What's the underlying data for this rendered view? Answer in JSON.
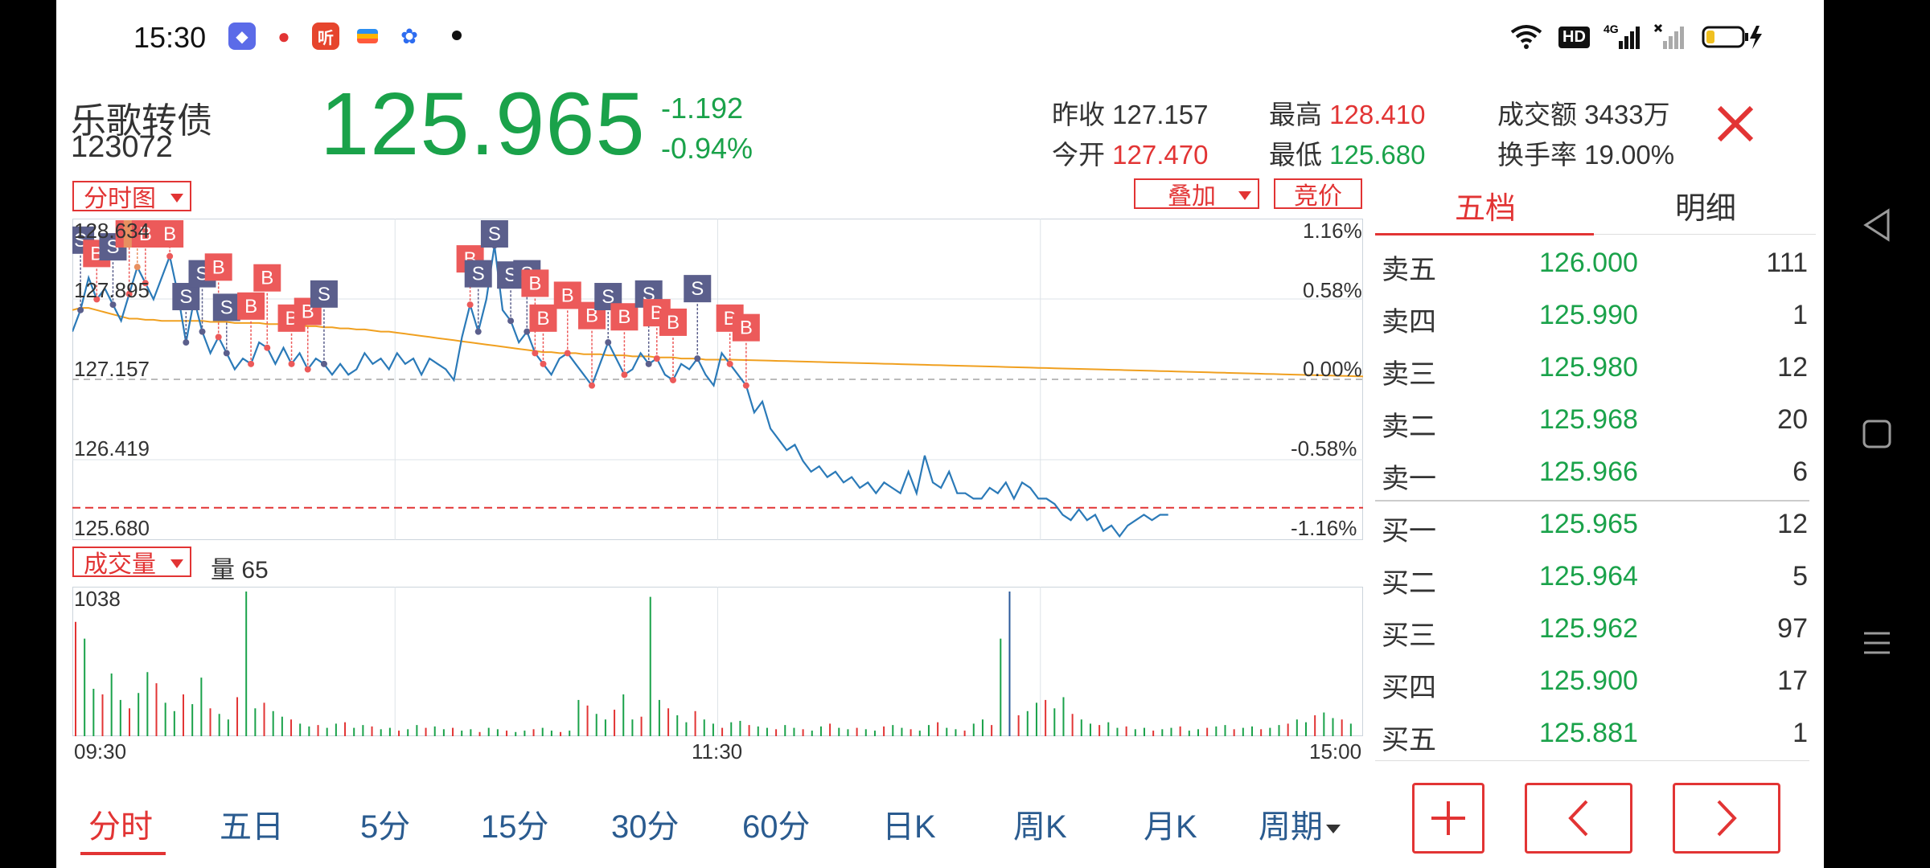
{
  "status_bar": {
    "time": "15:30",
    "apps": [
      {
        "icon": "shortcut-app-icon",
        "label": "◆",
        "color": "#5b6be8"
      },
      {
        "icon": "map-pin-app-icon",
        "label": "●",
        "color": "#ffffff"
      },
      {
        "icon": "listen-app-icon",
        "label": "听",
        "color": "#e6452d"
      },
      {
        "icon": "wallet-app-icon",
        "label": "▬",
        "color": "#ffffff"
      },
      {
        "icon": "baidu-app-icon",
        "label": "✿",
        "color": "#ffffff"
      }
    ],
    "hd_label": "HD",
    "net_label": "4G"
  },
  "header": {
    "name": "乐歌转债",
    "code": "123072",
    "price": "125.965",
    "change": "-1.192",
    "change_pct": "-0.94%",
    "stats": {
      "prev_close_label": "昨收",
      "prev_close": "127.157",
      "open_label": "今开",
      "open": "127.470",
      "high_label": "最高",
      "high": "128.410",
      "low_label": "最低",
      "low": "125.680",
      "amount_label": "成交额",
      "amount": "3433万",
      "turnover_label": "换手率",
      "turnover": "19.00%"
    }
  },
  "controls": {
    "chart_mode": "分时图",
    "overlay": "叠加",
    "auction": "竞价",
    "volume_mode": "成交量",
    "volume_label": "量 65"
  },
  "chart_data": {
    "type": "line",
    "title": "",
    "xlabel": "",
    "ylabel": "",
    "x_ticks": [
      "09:30",
      "11:30",
      "15:00"
    ],
    "y_ticks_left": [
      "128.634",
      "127.895",
      "127.157",
      "126.419",
      "125.680"
    ],
    "y_ticks_right": [
      "1.16%",
      "0.58%",
      "0.00%",
      "-0.58%",
      "-1.16%"
    ],
    "ylim": [
      125.68,
      128.634
    ],
    "prev_close": 127.157,
    "reference_line": 125.965,
    "series": [
      {
        "name": "price",
        "color": "#2b7ab8",
        "values": [
          127.6,
          127.8,
          128.1,
          127.9,
          128.0,
          127.85,
          127.7,
          127.95,
          128.2,
          128.05,
          127.9,
          128.1,
          128.3,
          127.95,
          127.5,
          127.9,
          127.6,
          127.4,
          127.55,
          127.4,
          127.25,
          127.35,
          127.3,
          127.5,
          127.45,
          127.3,
          127.45,
          127.3,
          127.4,
          127.25,
          127.35,
          127.3,
          127.2,
          127.3,
          127.2,
          127.25,
          127.4,
          127.3,
          127.35,
          127.25,
          127.4,
          127.3,
          127.35,
          127.2,
          127.35,
          127.3,
          127.25,
          127.15,
          127.55,
          127.85,
          127.6,
          127.9,
          128.4,
          127.8,
          127.7,
          127.5,
          127.6,
          127.4,
          127.3,
          127.2,
          127.35,
          127.4,
          127.3,
          127.2,
          127.1,
          127.3,
          127.5,
          127.35,
          127.2,
          127.25,
          127.4,
          127.3,
          127.35,
          127.2,
          127.15,
          127.3,
          127.25,
          127.35,
          127.2,
          127.1,
          127.4,
          127.3,
          127.2,
          127.1,
          126.85,
          126.95,
          126.7,
          126.6,
          126.5,
          126.55,
          126.4,
          126.3,
          126.35,
          126.25,
          126.3,
          126.2,
          126.25,
          126.15,
          126.2,
          126.1,
          126.2,
          126.15,
          126.1,
          126.3,
          126.1,
          126.45,
          126.2,
          126.15,
          126.3,
          126.1,
          126.1,
          126.05,
          126.05,
          126.15,
          126.1,
          126.2,
          126.05,
          126.2,
          126.15,
          126.05,
          126.05,
          126.0,
          125.9,
          125.85,
          125.95,
          125.85,
          125.9,
          125.75,
          125.8,
          125.7,
          125.8,
          125.85,
          125.9,
          125.85,
          125.9,
          125.9
        ]
      },
      {
        "name": "average",
        "color": "#f0a020",
        "values": [
          127.8,
          127.82,
          127.82,
          127.8,
          127.78,
          127.76,
          127.74,
          127.72,
          127.72,
          127.71,
          127.71,
          127.7,
          127.7,
          127.7,
          127.7,
          127.7,
          127.7,
          127.69,
          127.69,
          127.69,
          127.68,
          127.68,
          127.68,
          127.68,
          127.67,
          127.67,
          127.67,
          127.66,
          127.66,
          127.65,
          127.65,
          127.64,
          127.64,
          127.63,
          127.63,
          127.62,
          127.62,
          127.61,
          127.6,
          127.6,
          127.59,
          127.58,
          127.57,
          127.56,
          127.55,
          127.54,
          127.53,
          127.52,
          127.51,
          127.5,
          127.49,
          127.48,
          127.47,
          127.46,
          127.45,
          127.44,
          127.43,
          127.42,
          127.41,
          127.41,
          127.4,
          127.4,
          127.4,
          127.39,
          127.39,
          127.39,
          127.38,
          127.38,
          127.38,
          127.37,
          127.37,
          127.37,
          127.36,
          127.36,
          127.36,
          127.35,
          127.35,
          127.35,
          127.34,
          127.34,
          127.34
        ]
      }
    ],
    "volume_max_label": "1038",
    "volume_colors": {
      "up": "#e23434",
      "down": "#1aa24a",
      "flat": "#2b5a9a"
    },
    "volumes": [
      820,
      700,
      340,
      300,
      450,
      260,
      200,
      310,
      460,
      380,
      240,
      180,
      300,
      230,
      420,
      200,
      160,
      120,
      280,
      1038,
      200,
      240,
      180,
      140,
      120,
      90,
      70,
      80,
      60,
      90,
      100,
      60,
      80,
      70,
      50,
      60,
      40,
      50,
      80,
      60,
      70,
      50,
      60,
      40,
      50,
      30,
      60,
      50,
      40,
      30,
      40,
      50,
      60,
      40,
      30,
      40,
      260,
      220,
      160,
      120,
      190,
      300,
      120,
      140,
      1000,
      260,
      200,
      150,
      100,
      180,
      120,
      90,
      60,
      100,
      110,
      80,
      70,
      60,
      50,
      80,
      60,
      50,
      40,
      70,
      90,
      60,
      50,
      60,
      50,
      40,
      70,
      80,
      60,
      50,
      40,
      80,
      100,
      60,
      50,
      40,
      90,
      120,
      80,
      700,
      1038,
      150,
      180,
      240,
      260,
      200,
      280,
      160,
      120,
      90,
      80,
      100,
      60,
      70,
      50,
      60,
      40,
      50,
      60,
      70,
      40,
      50,
      60,
      70,
      80,
      50,
      60,
      70,
      50,
      60,
      80,
      90,
      120,
      100,
      150,
      170,
      130,
      120,
      90
    ],
    "trade_marks": [
      {
        "t": "S",
        "i": 1
      },
      {
        "t": "B",
        "i": 3
      },
      {
        "t": "S",
        "i": 5
      },
      {
        "t": "B",
        "i": 7
      },
      {
        "t": "T",
        "i": 8
      },
      {
        "t": "B",
        "i": 9
      },
      {
        "t": "B",
        "i": 12
      },
      {
        "t": "S",
        "i": 14
      },
      {
        "t": "S",
        "i": 16
      },
      {
        "t": "B",
        "i": 18
      },
      {
        "t": "S",
        "i": 19
      },
      {
        "t": "B",
        "i": 22
      },
      {
        "t": "B",
        "i": 24
      },
      {
        "t": "B",
        "i": 27
      },
      {
        "t": "B",
        "i": 29
      },
      {
        "t": "S",
        "i": 31
      },
      {
        "t": "B",
        "i": 49
      },
      {
        "t": "S",
        "i": 50
      },
      {
        "t": "S",
        "i": 52
      },
      {
        "t": "S",
        "i": 54
      },
      {
        "t": "S",
        "i": 56
      },
      {
        "t": "B",
        "i": 57
      },
      {
        "t": "B",
        "i": 58
      },
      {
        "t": "B",
        "i": 61
      },
      {
        "t": "B",
        "i": 64
      },
      {
        "t": "S",
        "i": 66
      },
      {
        "t": "B",
        "i": 68
      },
      {
        "t": "S",
        "i": 71
      },
      {
        "t": "B",
        "i": 72
      },
      {
        "t": "B",
        "i": 74
      },
      {
        "t": "S",
        "i": 77
      },
      {
        "t": "B",
        "i": 81
      },
      {
        "t": "B",
        "i": 83
      }
    ]
  },
  "order_book": {
    "tabs": [
      "五档",
      "明细"
    ],
    "asks": [
      {
        "label": "卖五",
        "price": "126.000",
        "qty": "111"
      },
      {
        "label": "卖四",
        "price": "125.990",
        "qty": "1"
      },
      {
        "label": "卖三",
        "price": "125.980",
        "qty": "12"
      },
      {
        "label": "卖二",
        "price": "125.968",
        "qty": "20"
      },
      {
        "label": "卖一",
        "price": "125.966",
        "qty": "6"
      }
    ],
    "bids": [
      {
        "label": "买一",
        "price": "125.965",
        "qty": "12"
      },
      {
        "label": "买二",
        "price": "125.964",
        "qty": "5"
      },
      {
        "label": "买三",
        "price": "125.962",
        "qty": "97"
      },
      {
        "label": "买四",
        "price": "125.900",
        "qty": "17"
      },
      {
        "label": "买五",
        "price": "125.881",
        "qty": "1"
      }
    ]
  },
  "periods": [
    "分时",
    "五日",
    "5分",
    "15分",
    "30分",
    "60分",
    "日K",
    "周K",
    "月K",
    "周期"
  ],
  "active_period": "分时"
}
